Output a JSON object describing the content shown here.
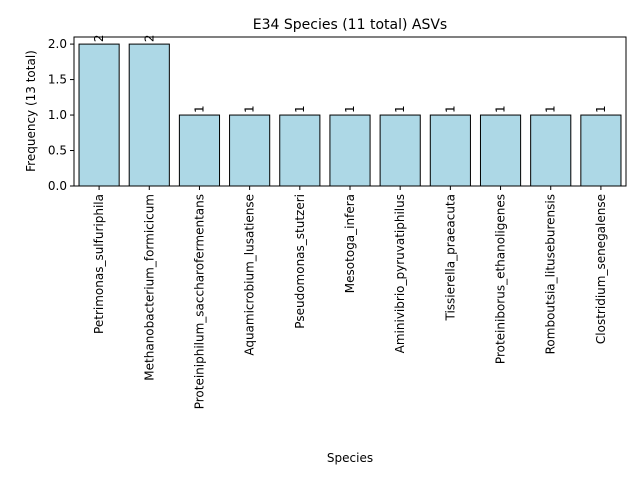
{
  "chart_data": {
    "type": "bar",
    "title": "E34 Species (11 total) ASVs",
    "xlabel": "Species",
    "ylabel": "Frequency (13 total)",
    "categories": [
      "Petrimonas_sulfuriphila",
      "Methanobacterium_formicicum",
      "Proteiniphilum_saccharofermentans",
      "Aquamicrobium_lusatiense",
      "Pseudomonas_stutzeri",
      "Mesotoga_infera",
      "Aminivibrio_pyruvatiphilus",
      "Tissierella_praeacuta",
      "Proteiniborus_ethanoligenes",
      "Romboutsia_lituseburensis",
      "Clostridium_senegalense"
    ],
    "values": [
      2,
      2,
      1,
      1,
      1,
      1,
      1,
      1,
      1,
      1,
      1
    ],
    "data_labels": [
      "2",
      "2",
      "1",
      "1",
      "1",
      "1",
      "1",
      "1",
      "1",
      "1",
      "1"
    ],
    "yticks": [
      0.0,
      0.5,
      1.0,
      1.5,
      2.0
    ],
    "ytick_labels": [
      "0.0",
      "0.5",
      "1.0",
      "1.5",
      "2.0"
    ],
    "ylim": [
      0,
      2.1
    ],
    "grid": false,
    "bar_color": "#add8e6",
    "edge_color": "#000000"
  }
}
